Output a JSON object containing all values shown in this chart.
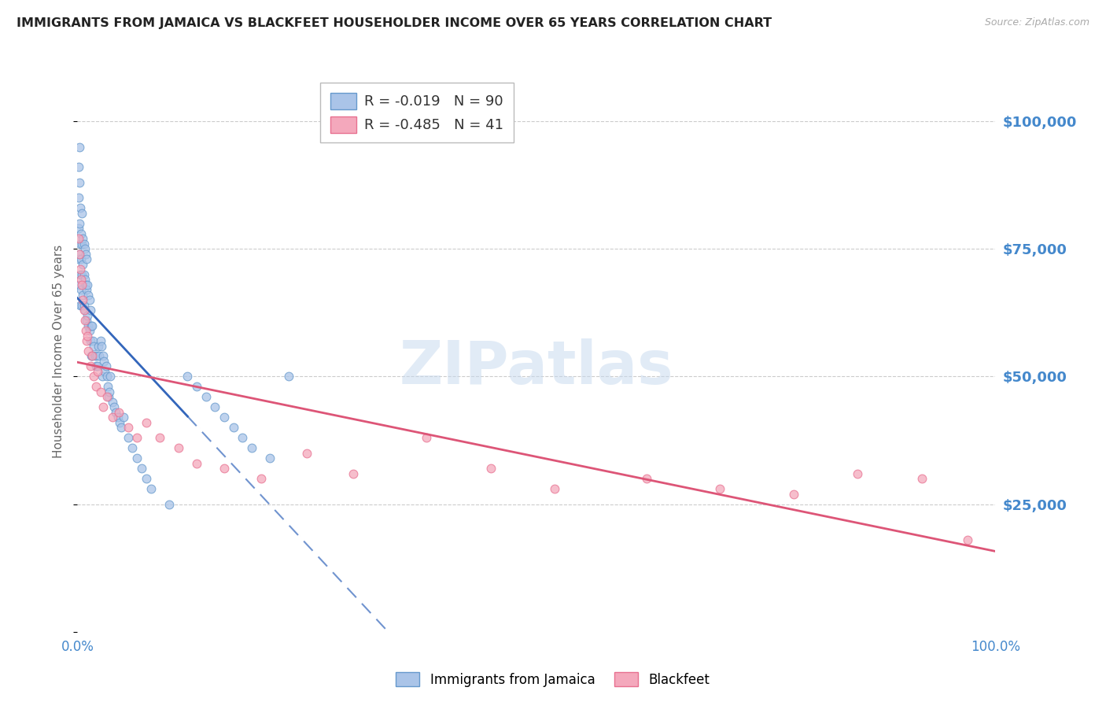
{
  "title": "IMMIGRANTS FROM JAMAICA VS BLACKFEET HOUSEHOLDER INCOME OVER 65 YEARS CORRELATION CHART",
  "source": "Source: ZipAtlas.com",
  "ylabel": "Householder Income Over 65 years",
  "xlim": [
    0.0,
    1.0
  ],
  "ylim": [
    0,
    110000
  ],
  "yticks": [
    0,
    25000,
    50000,
    75000,
    100000
  ],
  "ytick_labels": [
    "",
    "$25,000",
    "$50,000",
    "$75,000",
    "$100,000"
  ],
  "series1_color": "#aac4e8",
  "series2_color": "#f4a8bc",
  "series1_edge": "#6699cc",
  "series2_edge": "#e87090",
  "line1_color": "#3366bb",
  "line2_color": "#dd5577",
  "background_color": "#ffffff",
  "grid_color": "#cccccc",
  "ytick_color": "#4488cc",
  "title_color": "#222222",
  "jamaica_x": [
    0.001,
    0.001,
    0.001,
    0.001,
    0.002,
    0.002,
    0.002,
    0.002,
    0.002,
    0.003,
    0.003,
    0.003,
    0.003,
    0.004,
    0.004,
    0.004,
    0.005,
    0.005,
    0.005,
    0.005,
    0.006,
    0.006,
    0.006,
    0.007,
    0.007,
    0.007,
    0.008,
    0.008,
    0.008,
    0.009,
    0.009,
    0.01,
    0.01,
    0.01,
    0.011,
    0.011,
    0.012,
    0.012,
    0.013,
    0.013,
    0.014,
    0.014,
    0.015,
    0.015,
    0.016,
    0.016,
    0.017,
    0.018,
    0.019,
    0.02,
    0.021,
    0.022,
    0.023,
    0.024,
    0.025,
    0.026,
    0.027,
    0.028,
    0.029,
    0.03,
    0.031,
    0.032,
    0.033,
    0.034,
    0.035,
    0.036,
    0.038,
    0.04,
    0.042,
    0.044,
    0.046,
    0.048,
    0.05,
    0.055,
    0.06,
    0.065,
    0.07,
    0.075,
    0.08,
    0.1,
    0.12,
    0.13,
    0.14,
    0.15,
    0.16,
    0.17,
    0.18,
    0.19,
    0.21,
    0.23
  ],
  "jamaica_y": [
    91000,
    85000,
    79000,
    73000,
    95000,
    88000,
    80000,
    74000,
    68000,
    83000,
    76000,
    70000,
    64000,
    78000,
    73000,
    67000,
    82000,
    76000,
    70000,
    64000,
    77000,
    72000,
    66000,
    76000,
    70000,
    64000,
    75000,
    69000,
    63000,
    74000,
    68000,
    73000,
    67000,
    61000,
    68000,
    62000,
    66000,
    60000,
    65000,
    59000,
    63000,
    57000,
    60000,
    54000,
    60000,
    54000,
    57000,
    56000,
    54000,
    52000,
    54000,
    52000,
    56000,
    54000,
    57000,
    56000,
    50000,
    54000,
    53000,
    51000,
    52000,
    50000,
    48000,
    46000,
    47000,
    50000,
    45000,
    44000,
    43000,
    42000,
    41000,
    40000,
    42000,
    38000,
    36000,
    34000,
    32000,
    30000,
    28000,
    25000,
    50000,
    48000,
    46000,
    44000,
    42000,
    40000,
    38000,
    36000,
    34000,
    50000
  ],
  "blackfeet_x": [
    0.001,
    0.002,
    0.003,
    0.004,
    0.005,
    0.006,
    0.007,
    0.008,
    0.009,
    0.01,
    0.011,
    0.012,
    0.014,
    0.016,
    0.018,
    0.02,
    0.022,
    0.025,
    0.028,
    0.032,
    0.038,
    0.045,
    0.055,
    0.065,
    0.075,
    0.09,
    0.11,
    0.13,
    0.16,
    0.2,
    0.25,
    0.3,
    0.38,
    0.45,
    0.52,
    0.62,
    0.7,
    0.78,
    0.85,
    0.92,
    0.97
  ],
  "blackfeet_y": [
    77000,
    74000,
    71000,
    69000,
    68000,
    65000,
    63000,
    61000,
    59000,
    57000,
    58000,
    55000,
    52000,
    54000,
    50000,
    48000,
    51000,
    47000,
    44000,
    46000,
    42000,
    43000,
    40000,
    38000,
    41000,
    38000,
    36000,
    33000,
    32000,
    30000,
    35000,
    31000,
    38000,
    32000,
    28000,
    30000,
    28000,
    27000,
    31000,
    30000,
    18000
  ],
  "jamaica_R": -0.019,
  "jamaica_N": 90,
  "blackfeet_R": -0.485,
  "blackfeet_N": 41,
  "watermark": "ZIPatlas",
  "marker_size": 60,
  "line1_solid_end": 0.12,
  "line1_intercept": 55000,
  "line1_slope": -4000,
  "line2_intercept": 62000,
  "line2_slope": -38000
}
